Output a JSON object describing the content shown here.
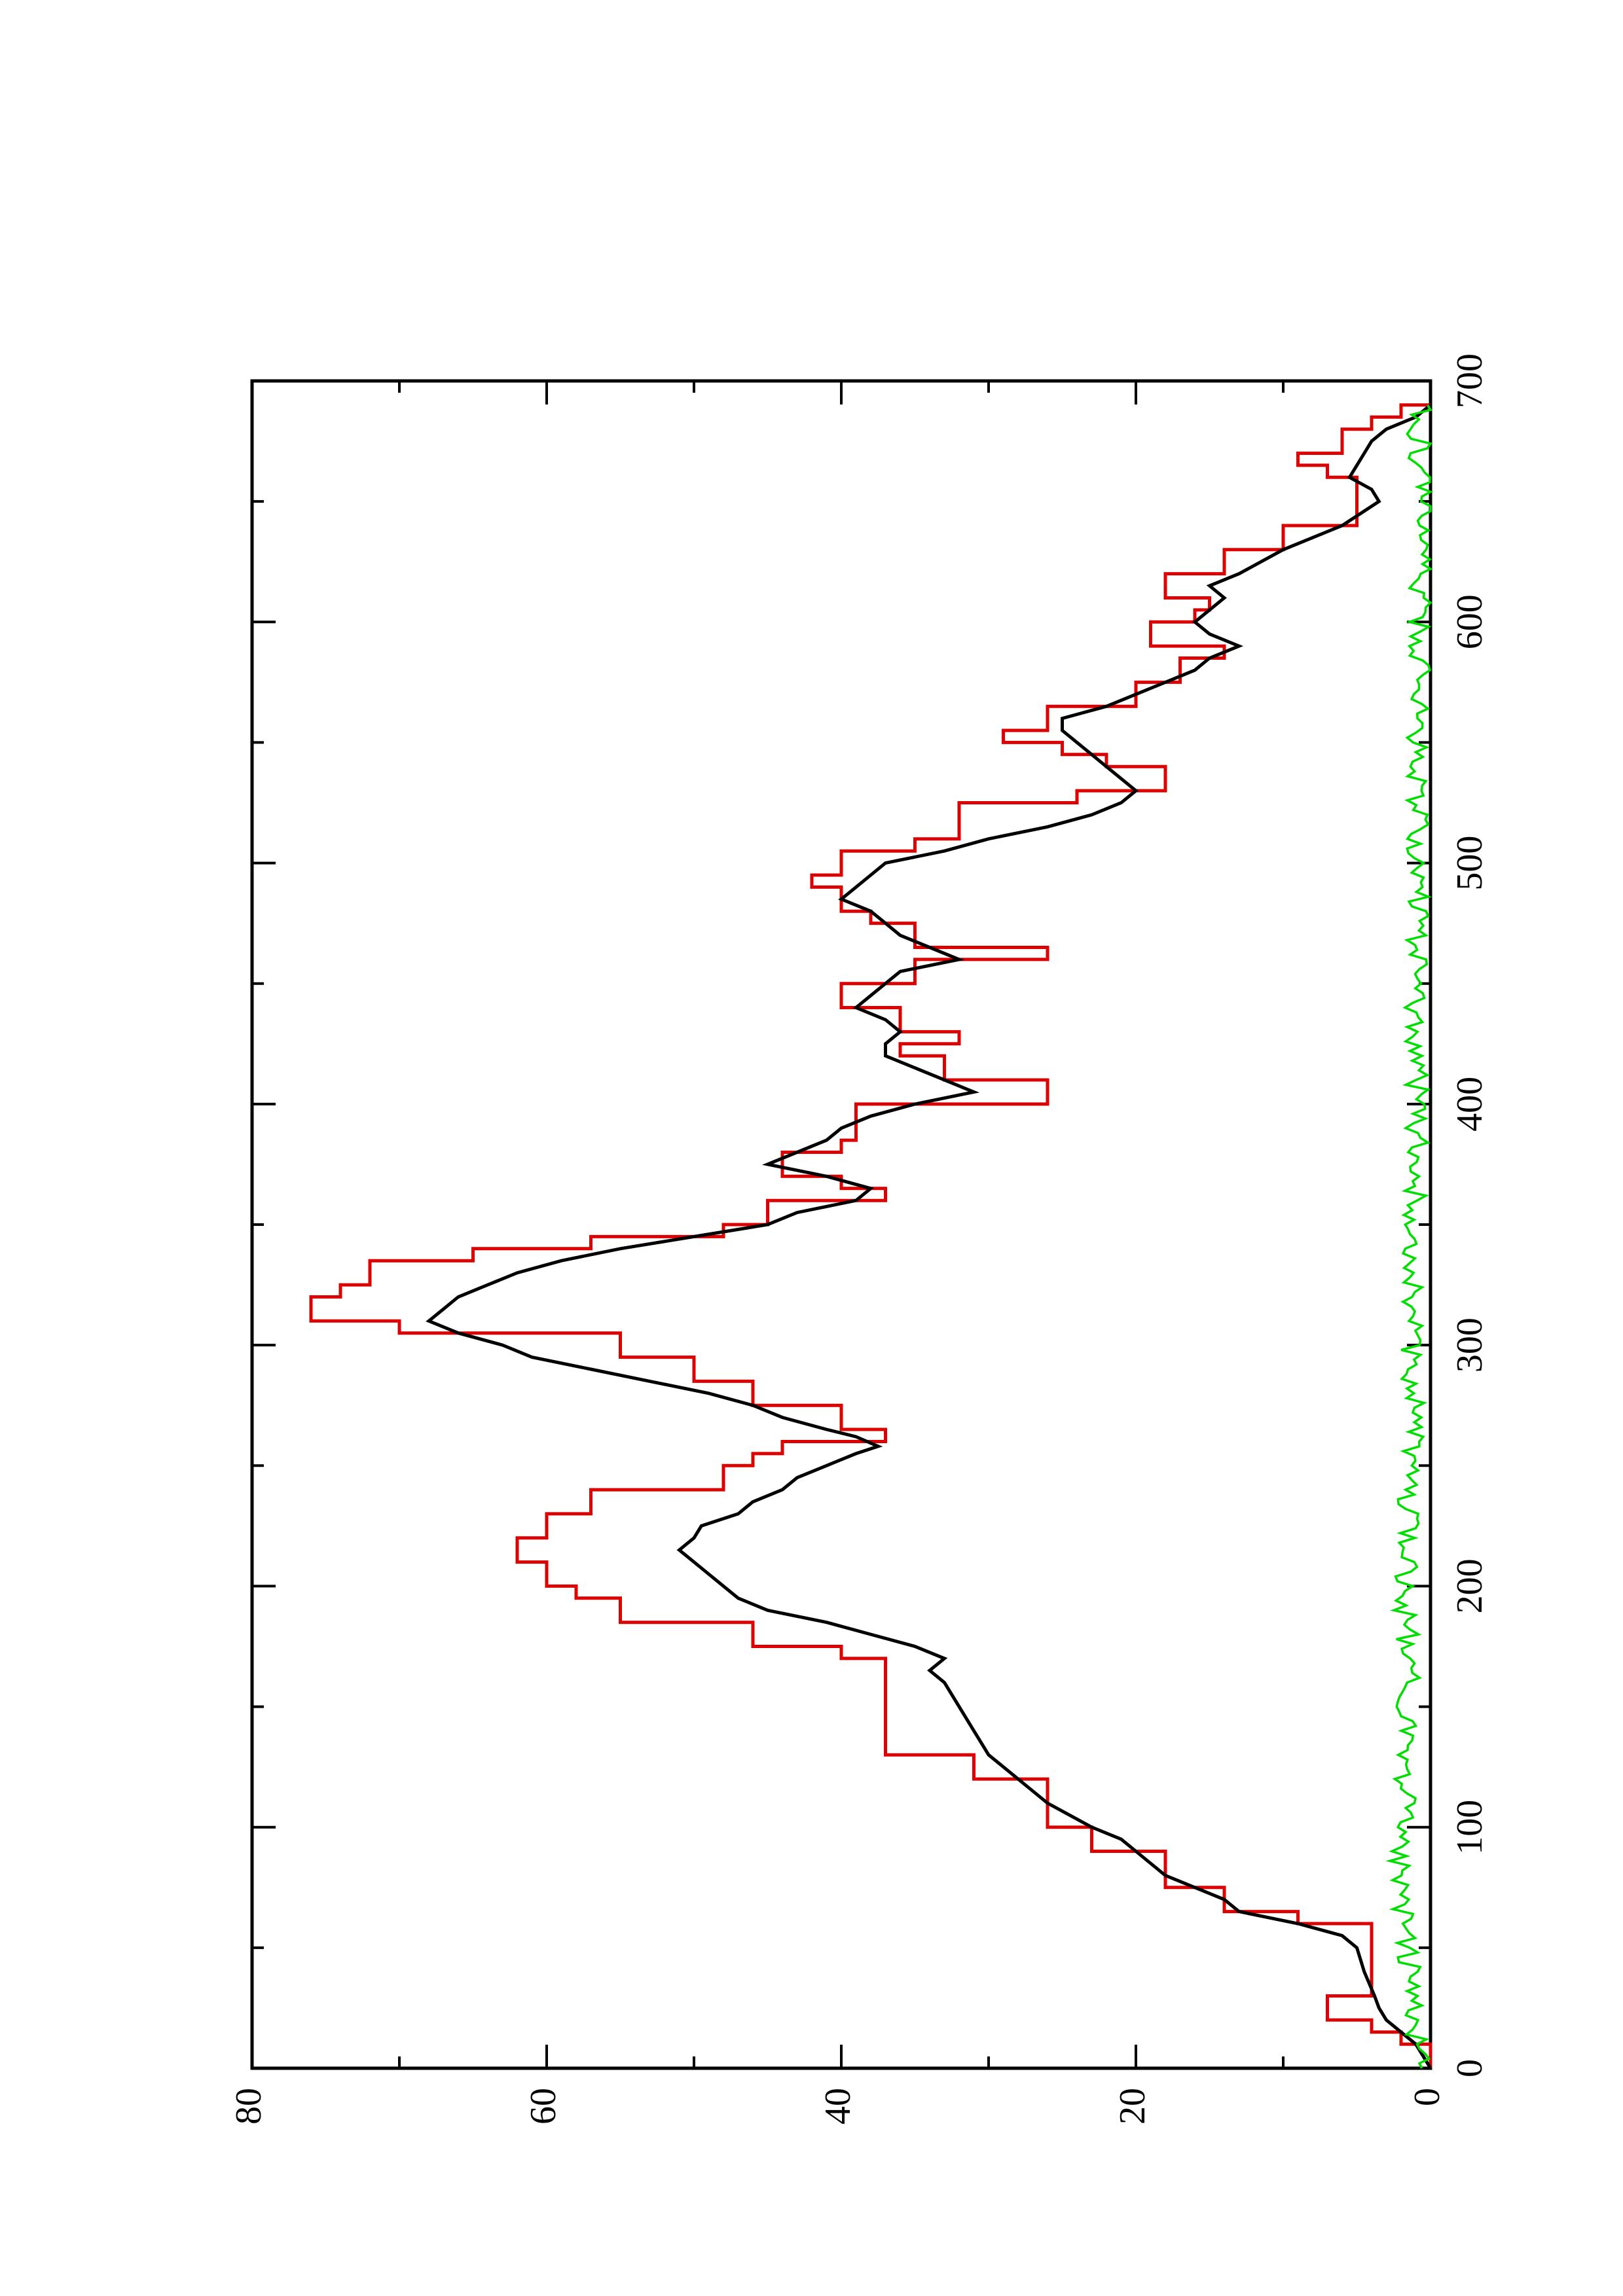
{
  "chart_data": {
    "type": "line",
    "orientation": "rotated-90-ccw",
    "title": "",
    "xlabel": "",
    "ylabel": "",
    "xlim": [
      0,
      700
    ],
    "ylim": [
      0,
      80
    ],
    "x_ticks_major": [
      0,
      100,
      200,
      300,
      400,
      500,
      600,
      700
    ],
    "x_ticks_minor": [
      50,
      150,
      250,
      350,
      450,
      550,
      650
    ],
    "y_ticks_major": [
      0,
      20,
      40,
      60,
      80
    ],
    "y_ticks_minor": [
      10,
      30,
      50,
      70
    ],
    "x_tick_labels": [
      "0",
      "100",
      "200",
      "300",
      "400",
      "500",
      "600",
      "700"
    ],
    "y_tick_labels": [
      "0",
      "20",
      "40",
      "60",
      "80"
    ],
    "grid": false,
    "legend": "none",
    "colors": {
      "red": "#dd0000",
      "black": "#000000",
      "green": "#00dd00"
    },
    "series": [
      {
        "color": "#dd0000",
        "step": true,
        "points": [
          [
            0,
            0
          ],
          [
            10,
            2
          ],
          [
            15,
            4
          ],
          [
            20,
            7
          ],
          [
            30,
            4
          ],
          [
            55,
            4
          ],
          [
            60,
            9
          ],
          [
            65,
            14
          ],
          [
            75,
            18
          ],
          [
            90,
            23
          ],
          [
            100,
            26
          ],
          [
            120,
            31
          ],
          [
            130,
            37
          ],
          [
            150,
            37
          ],
          [
            170,
            40
          ],
          [
            175,
            46
          ],
          [
            185,
            55
          ],
          [
            195,
            58
          ],
          [
            200,
            60
          ],
          [
            210,
            62
          ],
          [
            220,
            60
          ],
          [
            230,
            57
          ],
          [
            240,
            48
          ],
          [
            250,
            46
          ],
          [
            255,
            44
          ],
          [
            260,
            37
          ],
          [
            265,
            40
          ],
          [
            275,
            46
          ],
          [
            285,
            50
          ],
          [
            295,
            55
          ],
          [
            305,
            70
          ],
          [
            310,
            76
          ],
          [
            320,
            74
          ],
          [
            325,
            72
          ],
          [
            335,
            65
          ],
          [
            340,
            57
          ],
          [
            345,
            48
          ],
          [
            350,
            45
          ],
          [
            360,
            37
          ],
          [
            365,
            40
          ],
          [
            370,
            44
          ],
          [
            380,
            40
          ],
          [
            385,
            39
          ],
          [
            400,
            26
          ],
          [
            410,
            33
          ],
          [
            420,
            36
          ],
          [
            425,
            32
          ],
          [
            430,
            36
          ],
          [
            440,
            40
          ],
          [
            450,
            35
          ],
          [
            460,
            26
          ],
          [
            465,
            35
          ],
          [
            475,
            38
          ],
          [
            480,
            40
          ],
          [
            490,
            42
          ],
          [
            495,
            40
          ],
          [
            505,
            35
          ],
          [
            510,
            32
          ],
          [
            525,
            24
          ],
          [
            530,
            18
          ],
          [
            540,
            22
          ],
          [
            545,
            25
          ],
          [
            550,
            29
          ],
          [
            555,
            26
          ],
          [
            565,
            20
          ],
          [
            575,
            17
          ],
          [
            585,
            14
          ],
          [
            590,
            19
          ],
          [
            600,
            16
          ],
          [
            605,
            15
          ],
          [
            610,
            18
          ],
          [
            620,
            14
          ],
          [
            630,
            10
          ],
          [
            640,
            5
          ],
          [
            655,
            5
          ],
          [
            660,
            7
          ],
          [
            665,
            9
          ],
          [
            670,
            6
          ],
          [
            680,
            4
          ],
          [
            685,
            2
          ],
          [
            690,
            0
          ]
        ]
      },
      {
        "color": "#000000",
        "step": false,
        "points": [
          [
            0,
            0
          ],
          [
            5,
            0.5
          ],
          [
            10,
            1
          ],
          [
            15,
            2
          ],
          [
            20,
            3
          ],
          [
            25,
            3.5
          ],
          [
            30,
            3.8
          ],
          [
            40,
            4.5
          ],
          [
            50,
            5
          ],
          [
            55,
            6
          ],
          [
            60,
            9
          ],
          [
            65,
            13
          ],
          [
            70,
            14
          ],
          [
            75,
            16
          ],
          [
            80,
            18
          ],
          [
            85,
            19
          ],
          [
            90,
            20
          ],
          [
            95,
            21
          ],
          [
            100,
            23
          ],
          [
            105,
            24.5
          ],
          [
            110,
            26
          ],
          [
            115,
            27
          ],
          [
            120,
            28
          ],
          [
            125,
            29
          ],
          [
            130,
            30
          ],
          [
            140,
            31
          ],
          [
            150,
            32
          ],
          [
            160,
            33
          ],
          [
            165,
            34
          ],
          [
            170,
            33
          ],
          [
            175,
            35
          ],
          [
            180,
            38
          ],
          [
            185,
            41
          ],
          [
            190,
            45
          ],
          [
            195,
            47
          ],
          [
            200,
            48
          ],
          [
            205,
            49
          ],
          [
            210,
            50
          ],
          [
            215,
            51
          ],
          [
            220,
            50
          ],
          [
            225,
            49.5
          ],
          [
            230,
            47
          ],
          [
            235,
            46
          ],
          [
            240,
            44
          ],
          [
            245,
            43
          ],
          [
            250,
            41
          ],
          [
            255,
            39
          ],
          [
            258,
            37.5
          ],
          [
            262,
            39
          ],
          [
            265,
            41
          ],
          [
            270,
            44
          ],
          [
            275,
            46
          ],
          [
            280,
            49
          ],
          [
            285,
            53
          ],
          [
            290,
            57
          ],
          [
            295,
            61
          ],
          [
            300,
            63
          ],
          [
            305,
            66
          ],
          [
            310,
            68
          ],
          [
            315,
            67
          ],
          [
            320,
            66
          ],
          [
            325,
            64
          ],
          [
            330,
            62
          ],
          [
            335,
            59
          ],
          [
            340,
            55
          ],
          [
            345,
            50
          ],
          [
            350,
            45
          ],
          [
            355,
            43
          ],
          [
            360,
            39
          ],
          [
            365,
            38
          ],
          [
            370,
            41
          ],
          [
            375,
            45
          ],
          [
            380,
            43
          ],
          [
            385,
            41
          ],
          [
            390,
            40
          ],
          [
            395,
            38
          ],
          [
            400,
            35
          ],
          [
            405,
            31
          ],
          [
            410,
            33
          ],
          [
            415,
            35
          ],
          [
            420,
            37
          ],
          [
            425,
            37
          ],
          [
            430,
            36
          ],
          [
            435,
            37
          ],
          [
            440,
            39
          ],
          [
            445,
            38
          ],
          [
            450,
            37
          ],
          [
            455,
            36
          ],
          [
            460,
            32
          ],
          [
            465,
            34
          ],
          [
            470,
            36
          ],
          [
            475,
            37
          ],
          [
            480,
            38
          ],
          [
            485,
            40
          ],
          [
            490,
            39
          ],
          [
            495,
            38
          ],
          [
            500,
            37
          ],
          [
            505,
            33
          ],
          [
            510,
            30
          ],
          [
            515,
            26
          ],
          [
            520,
            23
          ],
          [
            525,
            21
          ],
          [
            530,
            20
          ],
          [
            535,
            21
          ],
          [
            540,
            22
          ],
          [
            545,
            23
          ],
          [
            550,
            24
          ],
          [
            555,
            25
          ],
          [
            560,
            25
          ],
          [
            565,
            22
          ],
          [
            570,
            20
          ],
          [
            575,
            18
          ],
          [
            580,
            16
          ],
          [
            585,
            15
          ],
          [
            590,
            13
          ],
          [
            595,
            15
          ],
          [
            600,
            16
          ],
          [
            605,
            15
          ],
          [
            610,
            14
          ],
          [
            615,
            15
          ],
          [
            620,
            13
          ],
          [
            630,
            10
          ],
          [
            640,
            6
          ],
          [
            650,
            3.5
          ],
          [
            655,
            4
          ],
          [
            660,
            5.5
          ],
          [
            665,
            5
          ],
          [
            670,
            4.5
          ],
          [
            675,
            4
          ],
          [
            680,
            3
          ],
          [
            685,
            1
          ],
          [
            690,
            0
          ]
        ]
      },
      {
        "color": "#00dd00",
        "step": false,
        "noise": true,
        "points": [
          [
            0,
            0.6
          ],
          [
            20,
            1.2
          ],
          [
            40,
            1.4
          ],
          [
            60,
            1.6
          ],
          [
            80,
            2.2
          ],
          [
            100,
            1.8
          ],
          [
            120,
            1.7
          ],
          [
            140,
            1.6
          ],
          [
            160,
            1.5
          ],
          [
            180,
            1.6
          ],
          [
            200,
            1.8
          ],
          [
            220,
            1.5
          ],
          [
            240,
            1.7
          ],
          [
            260,
            1.3
          ],
          [
            280,
            1.2
          ],
          [
            300,
            1.4
          ],
          [
            320,
            1.2
          ],
          [
            340,
            1.1
          ],
          [
            360,
            1.0
          ],
          [
            380,
            0.9
          ],
          [
            400,
            0.9
          ],
          [
            420,
            1.0
          ],
          [
            440,
            1.1
          ],
          [
            460,
            1.0
          ],
          [
            480,
            0.9
          ],
          [
            500,
            0.9
          ],
          [
            520,
            0.8
          ],
          [
            540,
            0.9
          ],
          [
            560,
            0.8
          ],
          [
            580,
            0.7
          ],
          [
            600,
            0.8
          ],
          [
            620,
            0.6
          ],
          [
            640,
            0.6
          ],
          [
            660,
            0.7
          ],
          [
            680,
            0.8
          ],
          [
            690,
            0.5
          ]
        ]
      }
    ]
  }
}
